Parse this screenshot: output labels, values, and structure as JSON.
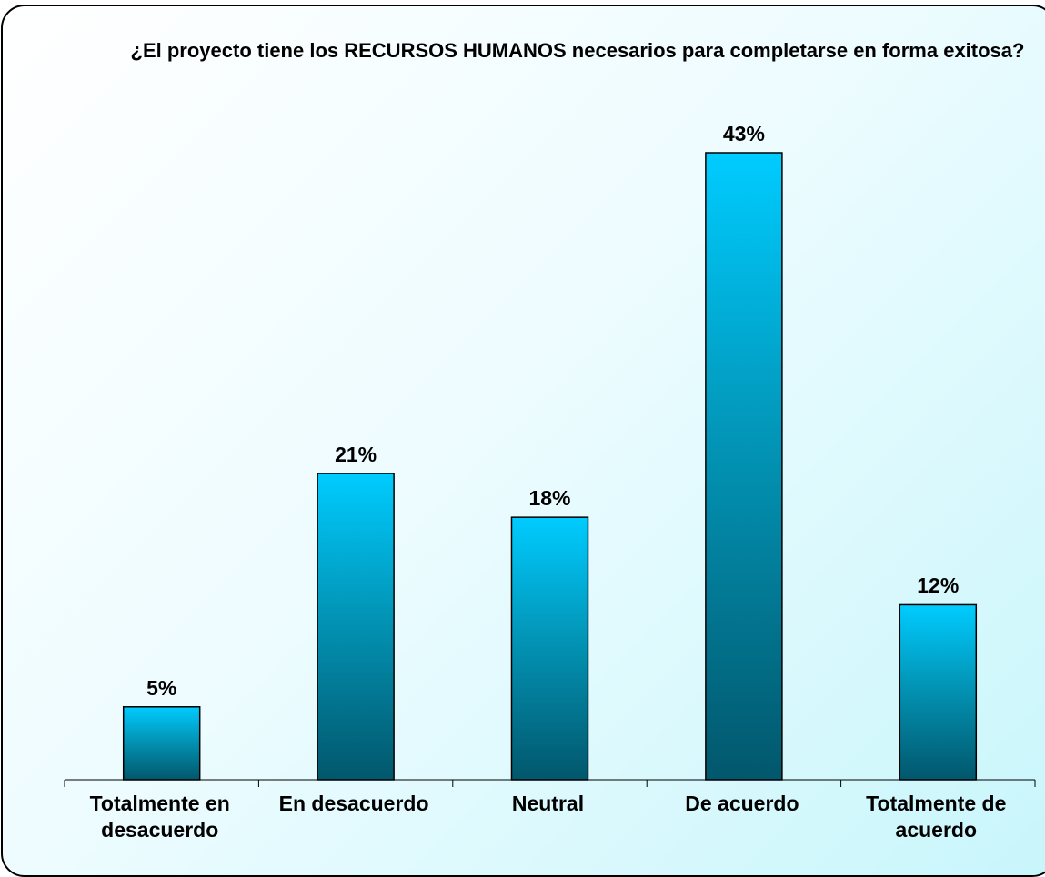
{
  "chart_data": {
    "type": "bar",
    "title": "¿El proyecto tiene los RECURSOS HUMANOS necesarios para completarse en forma exitosa?",
    "categories": [
      "Totalmente en desacuerdo",
      "En desacuerdo",
      "Neutral",
      "De acuerdo",
      "Totalmente de acuerdo"
    ],
    "values": [
      5,
      21,
      18,
      43,
      12
    ],
    "value_labels": [
      "5%",
      "21%",
      "18%",
      "43%",
      "12%"
    ],
    "color": "#00ccff"
  }
}
